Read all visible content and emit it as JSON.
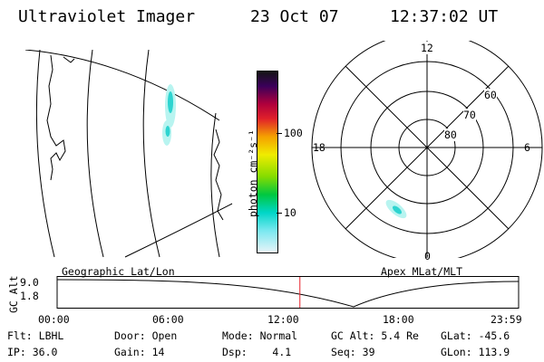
{
  "header": {
    "title": "Ultraviolet Imager",
    "date": "23 Oct 07",
    "time": "12:37:02 UT"
  },
  "colorbar": {
    "label": "photon cm⁻²s⁻¹",
    "ticks": [
      "100",
      "10"
    ]
  },
  "polar": {
    "mlt_labels": [
      "12",
      "18",
      "6",
      "0"
    ],
    "mlat_labels": [
      "60",
      "70",
      "80"
    ]
  },
  "panel_labels": {
    "left": "Geographic Lat/Lon",
    "right": "Apex MLat/MLT"
  },
  "timeline": {
    "ylabel": "GC Alt",
    "y_ticks": [
      "9.0",
      "1.8"
    ],
    "x_ticks": [
      "00:00",
      "06:00",
      "12:00",
      "18:00",
      "23:59"
    ],
    "marker_time": "12:37"
  },
  "info": [
    [
      {
        "k": "Flt:",
        "v": "LBHL"
      },
      {
        "k": "Door:",
        "v": "Open"
      },
      {
        "k": "Mode:",
        "v": "Normal"
      },
      {
        "k": "GC Alt:",
        "v": "5.4 Re"
      },
      {
        "k": "GLat:",
        "v": "-45.6"
      }
    ],
    [
      {
        "k": "IP:",
        "v": "36.0"
      },
      {
        "k": "Gain:",
        "v": "14"
      },
      {
        "k": "Dsp:",
        "v": "4.1"
      },
      {
        "k": "Seq:",
        "v": "39"
      },
      {
        "k": "GLon:",
        "v": "113.9"
      }
    ]
  ],
  "colors": {
    "marker": "#e8202a",
    "aurora_light": "#9af0ec",
    "aurora_dark": "#2dd4d0"
  }
}
